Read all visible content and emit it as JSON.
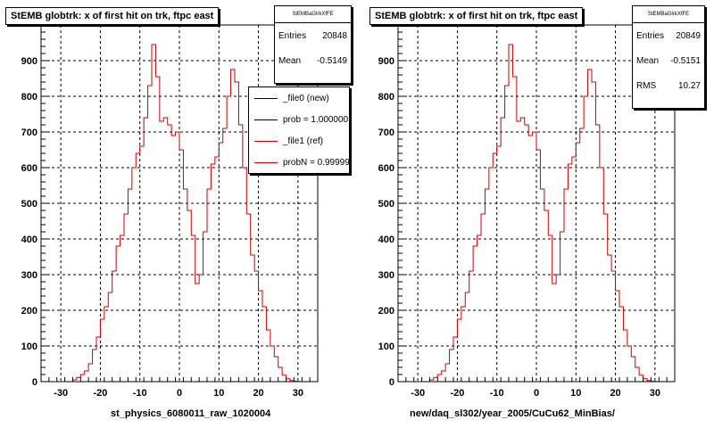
{
  "footer_text": "",
  "chart_data": [
    {
      "type": "bar",
      "style": "histogram-step",
      "title": "StEMB globtrk: x of first hit on trk, ftpc east",
      "xlabel": "st_physics_6080011_raw_1020004",
      "ylabel": "",
      "xlim": [
        -35,
        35
      ],
      "ylim": [
        0,
        1000
      ],
      "xticks": [
        -30,
        -20,
        -10,
        0,
        10,
        20,
        30
      ],
      "yticks": [
        100,
        200,
        300,
        400,
        500,
        600,
        700,
        800,
        900
      ],
      "grid": true,
      "bin_width": 1,
      "bins_start": -27,
      "stats": {
        "name": "StEMBaGlrkXfFE",
        "rows": [
          {
            "label": "Entries",
            "value": "20848"
          },
          {
            "label": "Mean",
            "value": "-0.5149"
          }
        ]
      },
      "legend": [
        {
          "label": "_file0 (new)",
          "color": "#000000"
        },
        {
          "label": "prob = 1.000000",
          "color": "#000000"
        },
        {
          "label": "_file1 (ref)",
          "color": "#cc0000"
        },
        {
          "label": "probN = 0.999990",
          "color": "#cc0000"
        }
      ],
      "series": [
        {
          "name": "_file1 (ref)",
          "color": "#cc0000",
          "values": [
            5,
            12,
            20,
            30,
            50,
            90,
            125,
            175,
            210,
            250,
            310,
            380,
            410,
            470,
            540,
            600,
            640,
            660,
            740,
            830,
            945,
            855,
            730,
            740,
            720,
            690,
            700,
            650,
            540,
            480,
            410,
            275,
            300,
            420,
            540,
            610,
            630,
            670,
            710,
            800,
            875,
            840,
            720,
            600,
            470,
            355,
            310,
            255,
            210,
            145,
            100,
            70,
            40,
            18,
            8,
            3,
            1
          ]
        }
      ]
    },
    {
      "type": "bar",
      "style": "histogram-step",
      "title": "StEMB globtrk: x of first hit on trk, ftpc east",
      "xlabel": "new/daq_sl302/year_2005/CuCu62_MinBias/",
      "ylabel": "",
      "xlim": [
        -35,
        35
      ],
      "ylim": [
        0,
        1000
      ],
      "xticks": [
        -30,
        -20,
        -10,
        0,
        10,
        20,
        30
      ],
      "yticks": [
        100,
        200,
        300,
        400,
        500,
        600,
        700,
        800,
        900
      ],
      "grid": true,
      "bin_width": 1,
      "bins_start": -27,
      "stats": {
        "name": "StEMBaGlrkXfFE",
        "rows": [
          {
            "label": "Entries",
            "value": "20849"
          },
          {
            "label": "Mean",
            "value": "-0.5151"
          },
          {
            "label": "RMS",
            "value": "10.27"
          }
        ]
      },
      "legend": [],
      "series": [
        {
          "name": "",
          "color": "#cc0000",
          "values": [
            5,
            12,
            20,
            30,
            50,
            90,
            125,
            175,
            210,
            250,
            310,
            380,
            410,
            470,
            540,
            600,
            640,
            660,
            740,
            830,
            945,
            855,
            730,
            740,
            720,
            690,
            700,
            650,
            540,
            480,
            410,
            275,
            300,
            420,
            540,
            610,
            630,
            670,
            710,
            800,
            875,
            840,
            720,
            600,
            470,
            355,
            310,
            255,
            210,
            145,
            100,
            70,
            40,
            18,
            8,
            3,
            1
          ]
        }
      ]
    }
  ]
}
